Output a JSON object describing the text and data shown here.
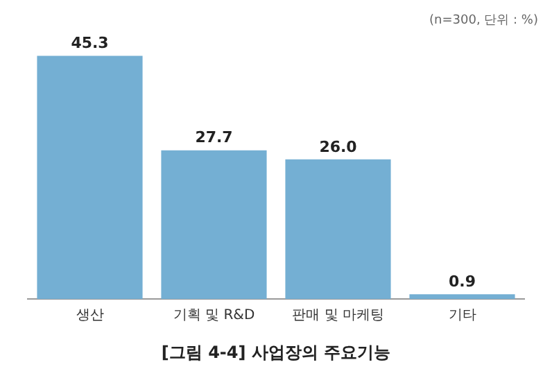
{
  "chart_data": {
    "type": "bar",
    "title": "[그림 4-4] 사업장의 주요기능",
    "categories": [
      "생산",
      "기획 및 R&D",
      "판매 및 마케팅",
      "기타"
    ],
    "values": [
      45.3,
      27.7,
      26.0,
      0.9
    ],
    "value_labels": [
      "45.3",
      "27.7",
      "26.0",
      "0.9"
    ],
    "color": "#74afd3",
    "annotations": [
      "(n=300, 단위 : %)"
    ],
    "grid": false,
    "legend": false
  }
}
